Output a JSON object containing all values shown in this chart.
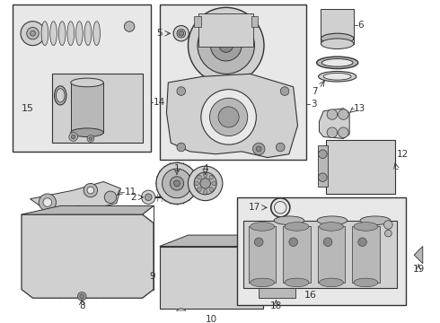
{
  "bg_color": "#ffffff",
  "lc": "#333333",
  "lc2": "#555555",
  "gray1": "#e8e8e8",
  "gray2": "#d0d0d0",
  "gray3": "#b8b8b8",
  "gray4": "#a0a0a0",
  "gray5": "#888888",
  "dot_bg": "#c8c8c8",
  "figw": 4.9,
  "figh": 3.6,
  "dpi": 100
}
